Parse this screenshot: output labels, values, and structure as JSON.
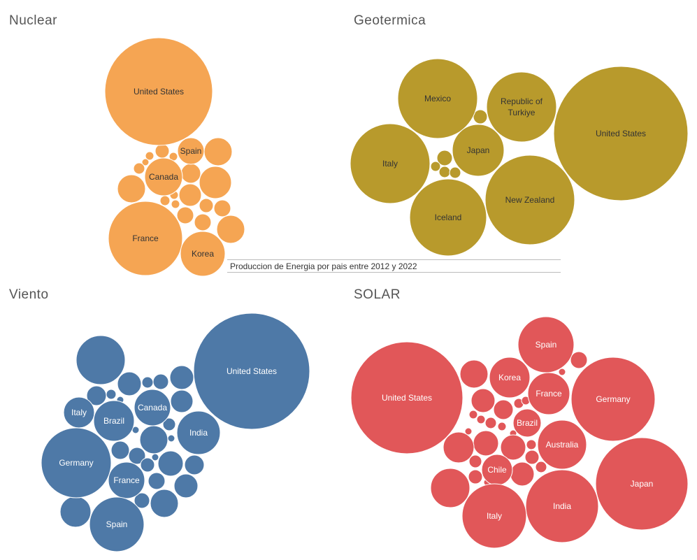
{
  "caption": "Produccion de Energia por pais entre 2012 y 2022",
  "chart_data": [
    {
      "type": "bubble",
      "title": "Nuclear",
      "color": "#F5A553",
      "label_color": "#333333",
      "countries": [
        "United States",
        "Spain",
        "Canada",
        "France",
        "Korea"
      ]
    },
    {
      "type": "bubble",
      "title": "Geotermica",
      "color": "#B89A2C",
      "label_color": "#333333",
      "countries": [
        "Mexico",
        "Republic of Turkiye",
        "United States",
        "Italy",
        "Japan",
        "New Zealand",
        "Iceland"
      ]
    },
    {
      "type": "bubble",
      "title": "Viento",
      "color": "#4E79A7",
      "label_color": "#ffffff",
      "countries": [
        "United States",
        "Italy",
        "Brazil",
        "Canada",
        "India",
        "Germany",
        "France",
        "Spain"
      ]
    },
    {
      "type": "bubble",
      "title": "SOLAR",
      "color": "#E15759",
      "label_color": "#ffffff",
      "countries": [
        "Spain",
        "Korea",
        "France",
        "Germany",
        "United States",
        "Brazil",
        "Australia",
        "Japan",
        "Chile",
        "India",
        "Italy"
      ]
    }
  ]
}
